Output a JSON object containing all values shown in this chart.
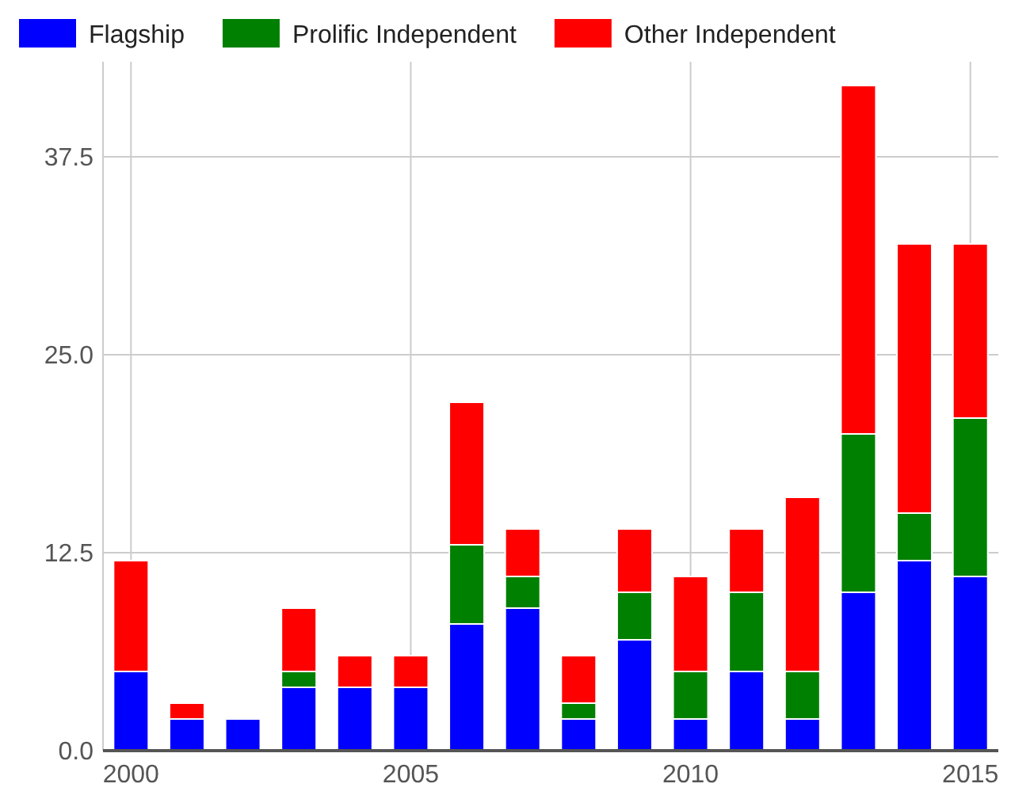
{
  "chart_data": {
    "type": "bar",
    "stacked": true,
    "x": [
      2000,
      2001,
      2002,
      2003,
      2004,
      2005,
      2006,
      2007,
      2008,
      2009,
      2010,
      2011,
      2012,
      2013,
      2014,
      2015
    ],
    "series": [
      {
        "name": "Flagship",
        "color": "#0000ff",
        "values": [
          5,
          2,
          2,
          4,
          4,
          4,
          8,
          9,
          2,
          7,
          2,
          5,
          2,
          10,
          12,
          11
        ]
      },
      {
        "name": "Prolific Independent",
        "color": "#008000",
        "values": [
          0,
          0,
          0,
          1,
          0,
          0,
          5,
          2,
          1,
          3,
          3,
          5,
          3,
          10,
          3,
          10
        ]
      },
      {
        "name": "Other Independent",
        "color": "#ff0000",
        "values": [
          7,
          1,
          0,
          4,
          2,
          2,
          9,
          3,
          3,
          4,
          6,
          4,
          11,
          22,
          17,
          11
        ]
      }
    ],
    "xlim": [
      1999.5,
      2015.5
    ],
    "xticks": [
      2000,
      2005,
      2010,
      2015
    ],
    "ylim": [
      0,
      43.5
    ],
    "yticks": [
      {
        "value": 0,
        "label": "0.0"
      },
      {
        "value": 12.5,
        "label": "12.5"
      },
      {
        "value": 25,
        "label": "25.0"
      },
      {
        "value": 37.5,
        "label": "37.5"
      }
    ],
    "grid": true,
    "legend": "top"
  }
}
